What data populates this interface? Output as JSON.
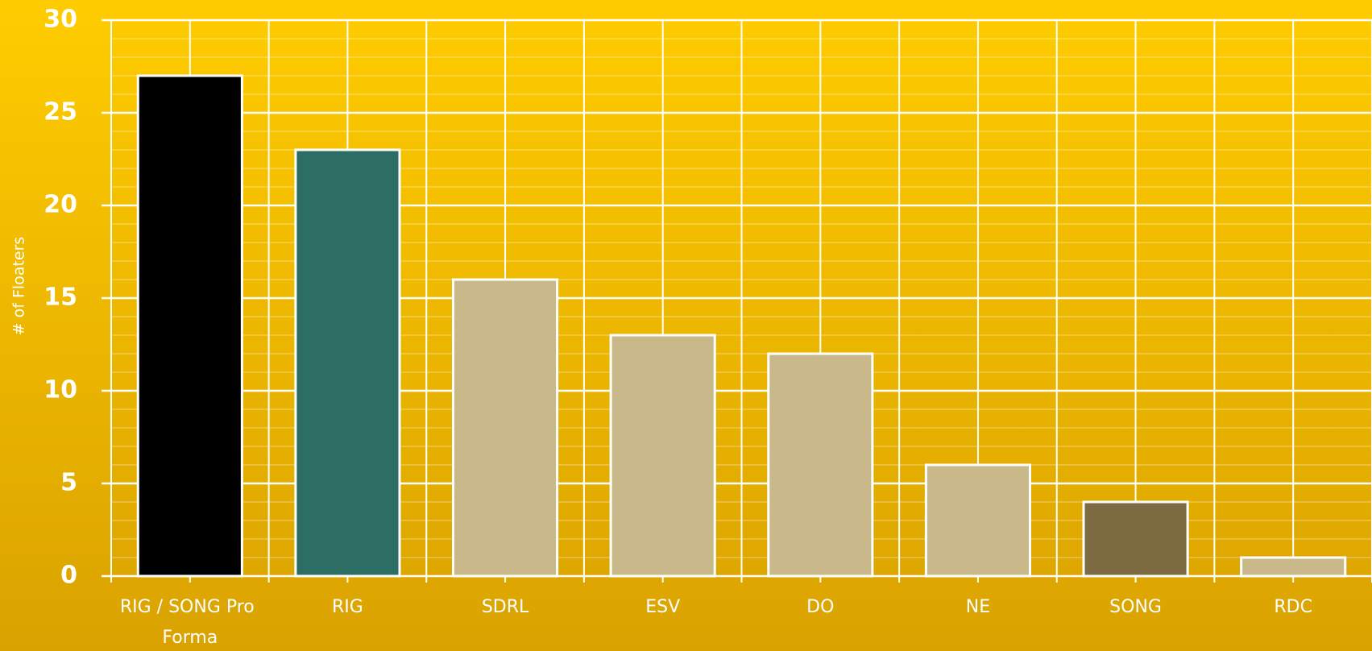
{
  "chart_data": {
    "type": "bar",
    "y_label": "# of Floaters",
    "categories": [
      "RIG / SONG Pro Forma",
      "RIG",
      "SDRL",
      "ESV",
      "DO",
      "NE",
      "SONG",
      "RDC"
    ],
    "values": [
      27,
      23,
      16,
      13,
      12,
      6,
      4,
      1
    ],
    "colors": [
      "#000000",
      "#2c6e63",
      "#c9b98a",
      "#c9b98a",
      "#c9b98a",
      "#c9b98a",
      "#7d6c42",
      "#c9b98a"
    ],
    "ylim": [
      0,
      30
    ],
    "yticks": [
      0,
      5,
      10,
      15,
      20,
      25,
      30
    ],
    "grid": true
  }
}
